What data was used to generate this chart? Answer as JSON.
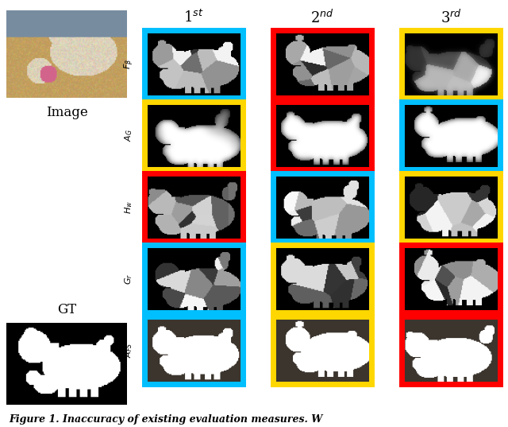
{
  "fig_width": 6.4,
  "fig_height": 5.37,
  "dpi": 100,
  "col_labels": [
    "1$^{st}$",
    "2$^{nd}$",
    "3$^{rd}$"
  ],
  "row_labels": [
    "$\\mathit{F}_{\\beta}$",
    "$A_G$",
    "$H_w$",
    "$G_r$",
    "$A_{FS}$"
  ],
  "border_colors": [
    [
      "#00BFFF",
      "#FF0000",
      "#FFD700"
    ],
    [
      "#FFD700",
      "#FF0000",
      "#00BFFF"
    ],
    [
      "#FF0000",
      "#00BFFF",
      "#FFD700"
    ],
    [
      "#00BFFF",
      "#FFD700",
      "#FF0000"
    ],
    [
      "#00BFFF",
      "#FFD700",
      "#FF0000"
    ]
  ],
  "caption": "Figure 1. Inaccuracy of existing evaluation measures. W",
  "border_lw": 5,
  "image_label": "Image",
  "gt_label": "GT"
}
